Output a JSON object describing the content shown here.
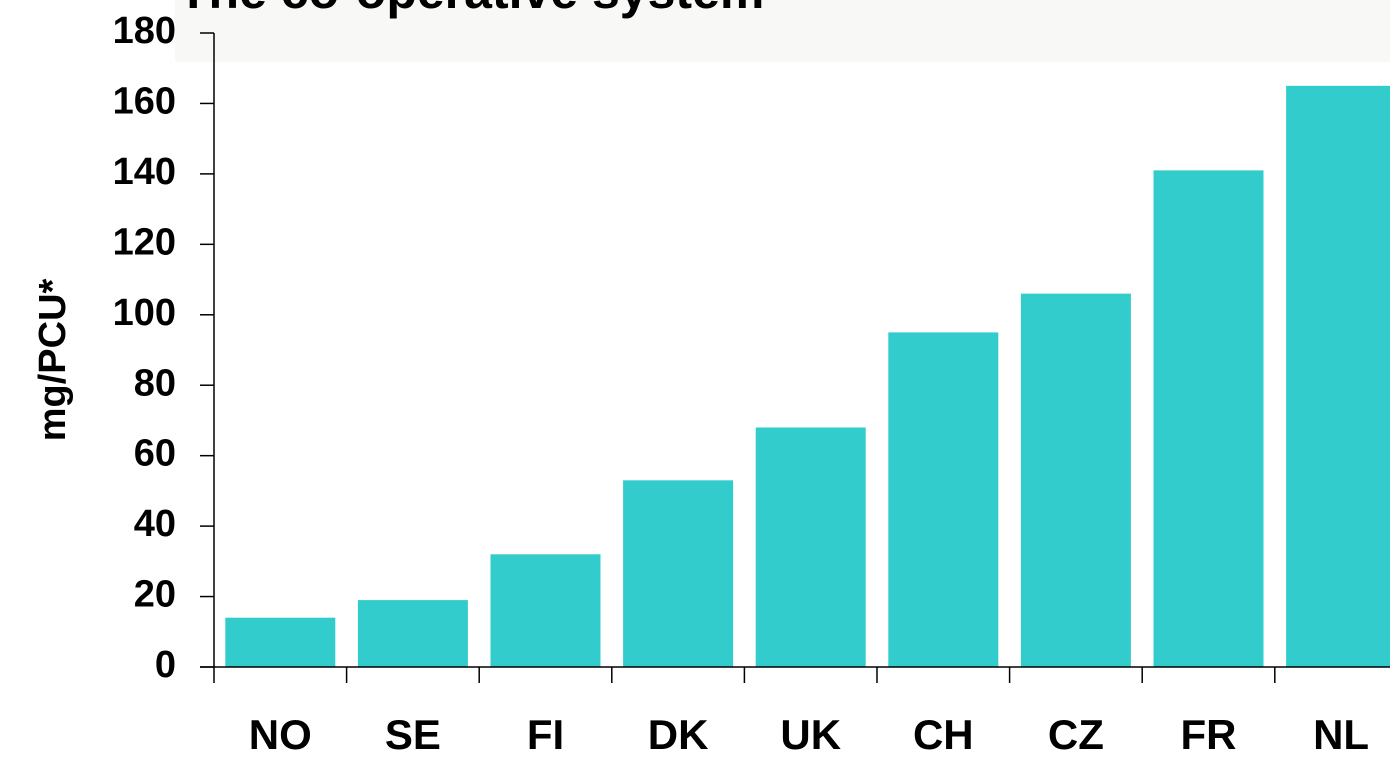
{
  "chart_data": {
    "type": "bar",
    "title": "The co-operative system",
    "y_axis_label": "mg/PCU*",
    "categories": [
      "NO",
      "SE",
      "FI",
      "DK",
      "UK",
      "CH",
      "CZ",
      "FR",
      "NL"
    ],
    "values": [
      14,
      19,
      32,
      53,
      68,
      95,
      106,
      141,
      165
    ],
    "color": "#33cccc",
    "ylim": [
      0,
      180
    ],
    "yticks": [
      0,
      20,
      40,
      60,
      80,
      100,
      120,
      140,
      160,
      180
    ],
    "grid": false
  }
}
